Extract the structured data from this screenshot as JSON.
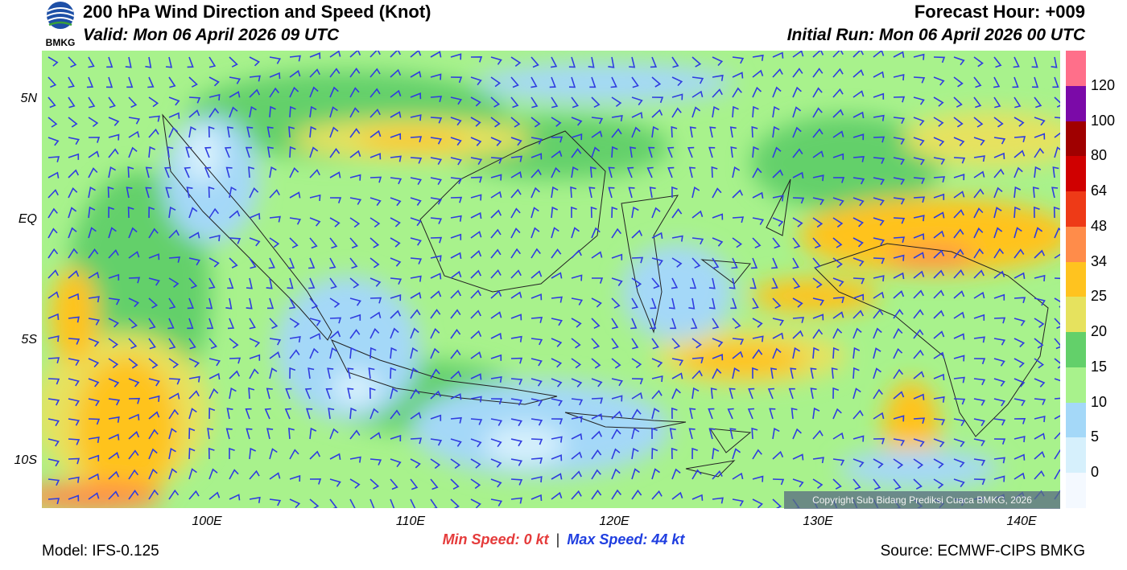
{
  "header": {
    "title": "200 hPa Wind Direction and Speed (Knot)",
    "valid": "Valid: Mon 06 April 2026 09 UTC",
    "forecast_hour": "Forecast Hour: +009",
    "initial_run": "Initial Run: Mon 06 April 2026 00 UTC"
  },
  "logo": {
    "text": "BMKG"
  },
  "axes": {
    "lat_labels": [
      "5N",
      "EQ",
      "5S",
      "10S"
    ],
    "lon_labels": [
      "100E",
      "110E",
      "120E",
      "130E",
      "140E"
    ]
  },
  "colorbar": {
    "labels": [
      "120",
      "100",
      "80",
      "64",
      "48",
      "34",
      "25",
      "20",
      "15",
      "10",
      "5",
      "0"
    ],
    "colors": [
      "#ff6f8a",
      "#7b0aa8",
      "#a00000",
      "#d00000",
      "#ee3a17",
      "#ff8c4a",
      "#ffc31f",
      "#e6e25e",
      "#63d06a",
      "#a8f28c",
      "#a4d8f8",
      "#d6f0fc",
      "#f4f9ff"
    ]
  },
  "footer": {
    "model": "Model: IFS-0.125",
    "source": "Source: ECMWF-CIPS BMKG",
    "min_label": "Min Speed:",
    "min_value": "0 kt",
    "separator": "|",
    "max_label": "Max Speed:",
    "max_value": "44 kt"
  },
  "copyright": "Copyright Sub Bidang Prediksi Cuaca BMKG, 2026"
}
